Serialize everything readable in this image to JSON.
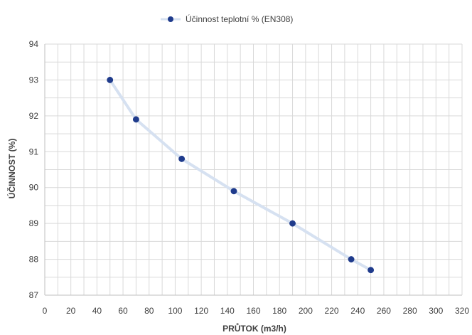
{
  "chart_data": {
    "type": "line",
    "title": "",
    "xlabel": "PRŮTOK (m3/h)",
    "ylabel": "ÚČINNOST (%)",
    "xlim": [
      0,
      320
    ],
    "ylim": [
      87,
      94
    ],
    "x_ticks": [
      0,
      20,
      40,
      60,
      80,
      100,
      120,
      140,
      160,
      180,
      200,
      220,
      240,
      260,
      280,
      300,
      320
    ],
    "y_ticks": [
      87,
      88,
      89,
      90,
      91,
      92,
      93,
      94
    ],
    "grid": true,
    "legend_position": "top-center",
    "series": [
      {
        "name": "Účinnost teplotní % (EN308)",
        "line_color": "#d6e1f1",
        "marker_color": "#1f3b8c",
        "points": [
          {
            "x": 50,
            "y": 93.0
          },
          {
            "x": 70,
            "y": 91.9
          },
          {
            "x": 105,
            "y": 90.8
          },
          {
            "x": 145,
            "y": 89.9
          },
          {
            "x": 190,
            "y": 89.0
          },
          {
            "x": 235,
            "y": 88.0
          },
          {
            "x": 250,
            "y": 87.7
          }
        ]
      }
    ],
    "colors": {
      "grid": "#d9d9d9",
      "axis": "#bfbfbf",
      "text": "#404040"
    }
  }
}
